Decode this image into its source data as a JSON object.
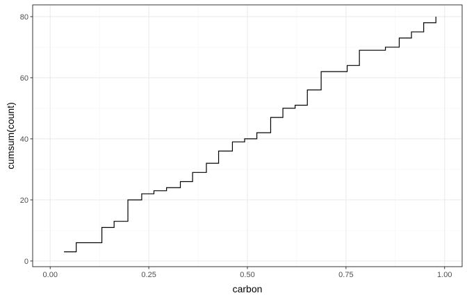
{
  "chart_data": {
    "type": "step",
    "title": "",
    "xlabel": "carbon",
    "ylabel": "cumsum(count)",
    "xlim": [
      -0.0445,
      1.0445
    ],
    "ylim": [
      -1.85,
      83.85
    ],
    "x_ticks": [
      0.0,
      0.25,
      0.5,
      0.75,
      1.0
    ],
    "x_tick_labels": [
      "0.00",
      "0.25",
      "0.50",
      "0.75",
      "1.00"
    ],
    "y_ticks": [
      0,
      20,
      40,
      60,
      80
    ],
    "y_tick_labels": [
      "0",
      "20",
      "40",
      "60",
      "80"
    ],
    "grid": true,
    "series": [
      {
        "name": "cumsum(count)",
        "color": "#000000",
        "x": [
          0.035,
          0.066,
          0.131,
          0.162,
          0.197,
          0.232,
          0.263,
          0.295,
          0.33,
          0.361,
          0.396,
          0.427,
          0.462,
          0.493,
          0.524,
          0.559,
          0.59,
          0.621,
          0.652,
          0.687,
          0.753,
          0.784,
          0.85,
          0.885,
          0.916,
          0.947,
          0.978
        ],
        "y": [
          3,
          6,
          11,
          13,
          20,
          22,
          23,
          24,
          26,
          29,
          32,
          36,
          39,
          40,
          42,
          47,
          50,
          51,
          56,
          62,
          64,
          69,
          70,
          73,
          75,
          78,
          80
        ]
      }
    ]
  },
  "colors": {
    "panel_border": "#333333",
    "grid_major": "#ebebeb",
    "grid_minor": "#f4f4f4",
    "line": "#000000"
  }
}
